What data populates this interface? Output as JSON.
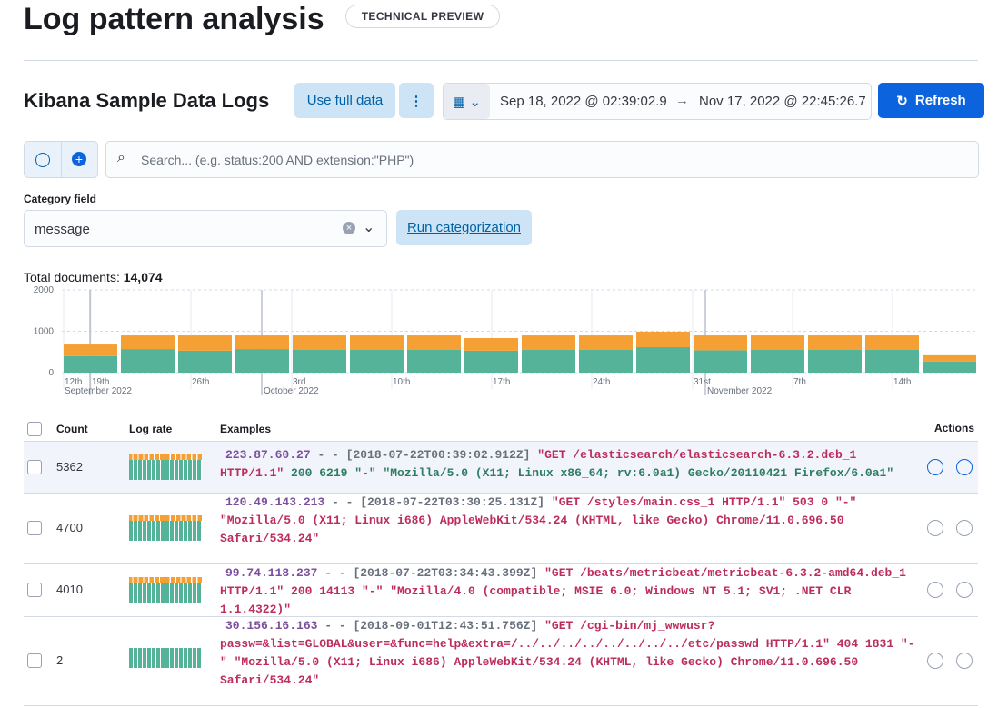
{
  "header": {
    "title": "Log pattern analysis",
    "badge": "TECHNICAL PREVIEW"
  },
  "toolbar": {
    "index": "Kibana Sample Data Logs",
    "use_full_data": "Use full data",
    "date_start": "Sep 18, 2022 @ 02:39:02.9",
    "date_end": "Nov 17, 2022 @ 22:45:26.7",
    "refresh": "Refresh"
  },
  "search": {
    "placeholder": "Search... (e.g. status:200 AND extension:\"PHP\")"
  },
  "category": {
    "label": "Category field",
    "value": "message",
    "run": "Run categorization"
  },
  "totals": {
    "label": "Total documents:",
    "value": "14,074"
  },
  "chart_data": {
    "type": "bar",
    "stacked": true,
    "ylim": [
      0,
      2000
    ],
    "yticks": [
      0,
      1000,
      2000
    ],
    "grid": true,
    "x_labels": [
      "12th",
      "19th",
      "26th",
      "3rd",
      "10th",
      "17th",
      "24th",
      "31st",
      "7th",
      "14th"
    ],
    "month_labels": [
      "September 2022",
      "October 2022",
      "November 2022"
    ],
    "series": [
      {
        "color": "#54b399",
        "values": [
          400,
          570,
          530,
          570,
          550,
          550,
          550,
          530,
          550,
          550,
          615,
          540,
          550,
          550,
          550,
          265
        ]
      },
      {
        "color": "#f5a035",
        "values": [
          280,
          330,
          370,
          330,
          350,
          350,
          350,
          305,
          350,
          350,
          375,
          360,
          350,
          350,
          350,
          155
        ]
      }
    ]
  },
  "table": {
    "columns": [
      "Count",
      "Log rate",
      "Examples",
      "Actions"
    ],
    "rows": [
      {
        "count": 5362,
        "ip": "223.87.60.27",
        "ts": "- - [2018-07-22T00:39:02.912Z]",
        "request": "\"GET /elasticsearch/elasticsearch-6.3.2.deb_1 HTTP/1.1\"",
        "tail": "200 6219 \"-\" \"Mozilla/5.0 (X11; Linux x86_64; rv:6.0a1) Gecko/20110421 Firefox/6.0a1\""
      },
      {
        "count": 4700,
        "ip": "120.49.143.213",
        "ts": "- - [2018-07-22T03:30:25.131Z]",
        "request": "\"GET /styles/main.css_1 HTTP/1.1\" 503 0 \"-\" \"Mozilla/5.0 (X11; Linux i686) AppleWebKit/534.24 (KHTML, like Gecko) Chrome/11.0.696.50 Safari/534.24\"",
        "tail": ""
      },
      {
        "count": 4010,
        "ip": "99.74.118.237",
        "ts": "- - [2018-07-22T03:34:43.399Z]",
        "request": "\"GET /beats/metricbeat/metricbeat-6.3.2-amd64.deb_1 HTTP/1.1\" 200 14113 \"-\" \"Mozilla/4.0 (compatible; MSIE 6.0; Windows NT 5.1; SV1; .NET CLR 1.1.4322)\"",
        "tail": ""
      },
      {
        "count": 2,
        "ip": "30.156.16.163",
        "ts": "- - [2018-09-01T12:43:51.756Z]",
        "request": "\"GET /cgi-bin/mj_wwwusr?passw=&list=GLOBAL&user=&func=help&extra=/../../../../../../../../etc/passwd HTTP/1.1\" 404 1831 \"-\" \"Mozilla/5.0 (X11; Linux i686) AppleWebKit/534.24 (KHTML, like Gecko) Chrome/11.0.696.50 Safari/534.24\"",
        "tail": ""
      }
    ]
  }
}
